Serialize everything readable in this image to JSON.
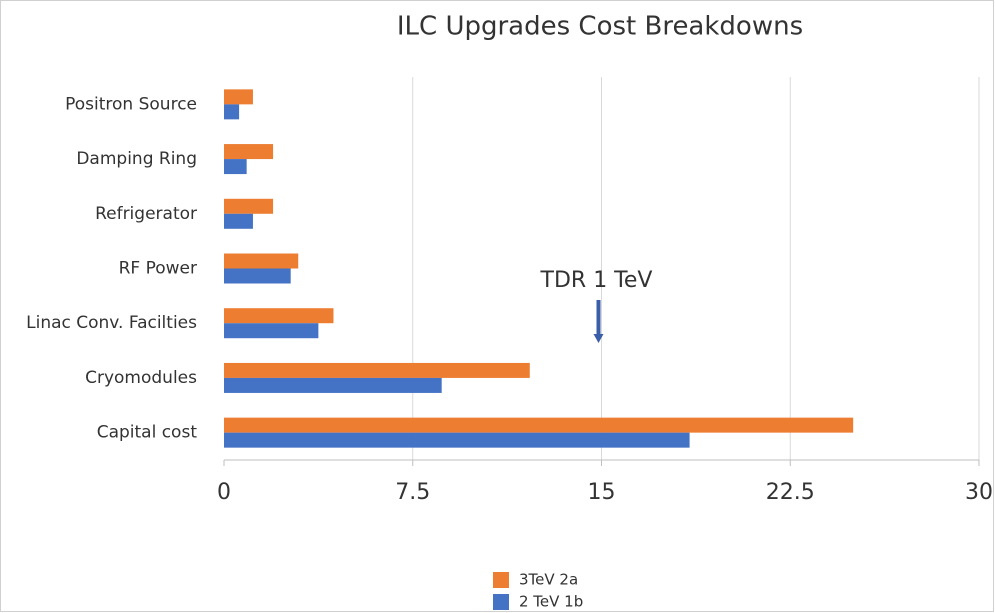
{
  "chart_data": {
    "type": "bar",
    "orientation": "horizontal",
    "title": "ILC Upgrades Cost Breakdowns",
    "categories": [
      "Positron Source",
      "Damping Ring",
      "Refrigerator",
      "RF Power",
      "Linac Conv. Facilties",
      "Cryomodules",
      "Capital cost"
    ],
    "series": [
      {
        "name": "3TeV 2a",
        "color": "#ed7d31",
        "values": [
          1.15,
          1.95,
          1.95,
          2.95,
          4.35,
          12.15,
          25.0
        ]
      },
      {
        "name": "2 TeV 1b",
        "color": "#4472c4",
        "values": [
          0.6,
          0.9,
          1.15,
          2.65,
          3.75,
          8.65,
          18.5
        ]
      }
    ],
    "xlim": [
      0,
      30
    ],
    "xticks": [
      0,
      7.5,
      15,
      22.5,
      30
    ],
    "grid": true,
    "legend": "bottom",
    "annotations": [
      {
        "text": "TDR 1 TeV",
        "x": 15
      }
    ]
  }
}
